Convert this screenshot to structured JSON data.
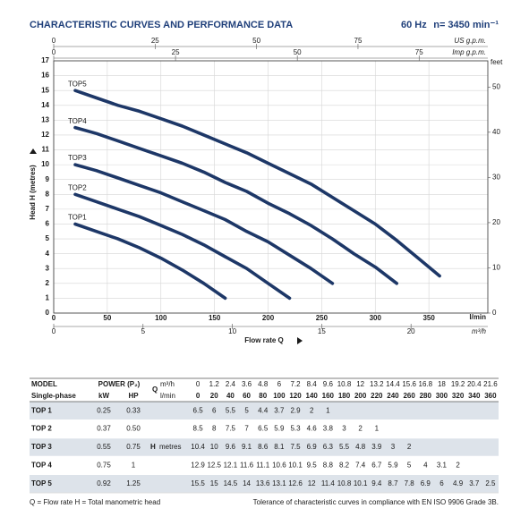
{
  "chart_data": {
    "type": "line",
    "title": "CHARACTERISTIC CURVES AND PERFORMANCE DATA",
    "frequency": "60 Hz",
    "speed": "n= 3450 min⁻¹",
    "x_label": "Flow rate Q",
    "x_unit": "l/min",
    "y_label": "Head H (metres)",
    "xlim": [
      0,
      405
    ],
    "xticks": [
      0,
      50,
      100,
      150,
      200,
      250,
      300,
      350
    ],
    "ylim": [
      0,
      17
    ],
    "yticks": [
      0,
      1,
      2,
      3,
      4,
      5,
      6,
      7,
      8,
      9,
      10,
      11,
      12,
      13,
      14,
      15,
      16,
      17
    ],
    "grid": true,
    "secondary_axes": [
      {
        "unit": "US g.p.m.",
        "position": "top",
        "lim": [
          0,
          107
        ],
        "ticks": [
          0,
          25,
          50,
          75
        ]
      },
      {
        "unit": "Imp g.p.m.",
        "position": "top",
        "lim": [
          0,
          89.1
        ],
        "ticks": [
          0,
          25,
          50,
          75
        ]
      },
      {
        "unit": "m³/h",
        "position": "bottom",
        "lim": [
          0,
          24.3
        ],
        "ticks": [
          0,
          5,
          10,
          15,
          20
        ]
      },
      {
        "unit": "feet",
        "position": "right",
        "lim": [
          0,
          55.8
        ],
        "ticks": [
          0,
          10,
          20,
          30,
          40,
          50
        ]
      }
    ],
    "x": [
      20,
      40,
      60,
      80,
      100,
      120,
      140,
      160,
      180,
      200,
      220,
      240,
      260,
      280,
      300,
      320,
      340,
      360
    ],
    "series": [
      {
        "name": "TOP1",
        "color": "#1d3767",
        "values": [
          6,
          5.5,
          5,
          4.4,
          3.7,
          2.9,
          2,
          1,
          null,
          null,
          null,
          null,
          null,
          null,
          null,
          null,
          null,
          null
        ]
      },
      {
        "name": "TOP2",
        "color": "#1d3767",
        "values": [
          8,
          7.5,
          7,
          6.5,
          5.9,
          5.3,
          4.6,
          3.8,
          3,
          2,
          1,
          null,
          null,
          null,
          null,
          null,
          null,
          null
        ]
      },
      {
        "name": "TOP3",
        "color": "#1d3767",
        "values": [
          10,
          9.6,
          9.1,
          8.6,
          8.1,
          7.5,
          6.9,
          6.3,
          5.5,
          4.8,
          3.9,
          3,
          2,
          null,
          null,
          null,
          null,
          null
        ]
      },
      {
        "name": "TOP4",
        "color": "#1d3767",
        "values": [
          12.5,
          12.1,
          11.6,
          11.1,
          10.6,
          10.1,
          9.5,
          8.8,
          8.2,
          7.4,
          6.7,
          5.9,
          5,
          4,
          3.1,
          2,
          null,
          null
        ]
      },
      {
        "name": "TOP5",
        "color": "#1d3767",
        "values": [
          15,
          14.5,
          14,
          13.6,
          13.1,
          12.6,
          12,
          11.4,
          10.8,
          10.1,
          9.4,
          8.7,
          7.8,
          6.9,
          6,
          4.9,
          3.7,
          2.5
        ]
      }
    ]
  },
  "table": {
    "header": {
      "model": "MODEL",
      "power": "POWER (P₂)",
      "q": "Q",
      "single": "Single-phase",
      "kw": "kW",
      "hp": "HP",
      "q_units": [
        "m³/h",
        "l/min"
      ],
      "m3h": [
        0,
        1.2,
        2.4,
        3.6,
        4.8,
        6.0,
        7.2,
        8.4,
        9.6,
        10.8,
        12.0,
        13.2,
        14.4,
        15.6,
        16.8,
        18.0,
        19.2,
        20.4,
        21.6
      ],
      "lmin": [
        0,
        20,
        40,
        60,
        80,
        100,
        120,
        140,
        160,
        180,
        200,
        220,
        240,
        260,
        280,
        300,
        320,
        340,
        360
      ],
      "h_label": "H",
      "h_unit": "metres"
    },
    "rows": [
      {
        "model": "TOP 1",
        "kw": "0.25",
        "hp": "0.33",
        "h": [
          6.5,
          6,
          5.5,
          5,
          4.4,
          3.7,
          2.9,
          2,
          1
        ]
      },
      {
        "model": "TOP 2",
        "kw": "0.37",
        "hp": "0.50",
        "h": [
          8.5,
          8,
          7.5,
          7,
          6.5,
          5.9,
          5.3,
          4.6,
          3.8,
          3,
          2,
          1
        ]
      },
      {
        "model": "TOP 3",
        "kw": "0.55",
        "hp": "0.75",
        "h": [
          10.4,
          10,
          9.6,
          9.1,
          8.6,
          8.1,
          7.5,
          6.9,
          6.3,
          5.5,
          4.8,
          3.9,
          3,
          2
        ]
      },
      {
        "model": "TOP 4",
        "kw": "0.75",
        "hp": "1",
        "h": [
          12.9,
          12.5,
          12.1,
          11.6,
          11.1,
          10.6,
          10.1,
          9.5,
          8.8,
          8.2,
          7.4,
          6.7,
          5.9,
          5,
          4,
          3.1,
          2
        ]
      },
      {
        "model": "TOP 5",
        "kw": "0.92",
        "hp": "1.25",
        "h": [
          15.5,
          15,
          14.5,
          14,
          13.6,
          13.1,
          12.6,
          12,
          11.4,
          10.8,
          10.1,
          9.4,
          8.7,
          7.8,
          6.9,
          6,
          4.9,
          3.7,
          2.5
        ]
      }
    ]
  },
  "footnote_left": "Q = Flow rate   H = Total manometric head",
  "footnote_right": "Tolerance of characteristic curves in compliance with EN ISO 9906 Grade 3B."
}
